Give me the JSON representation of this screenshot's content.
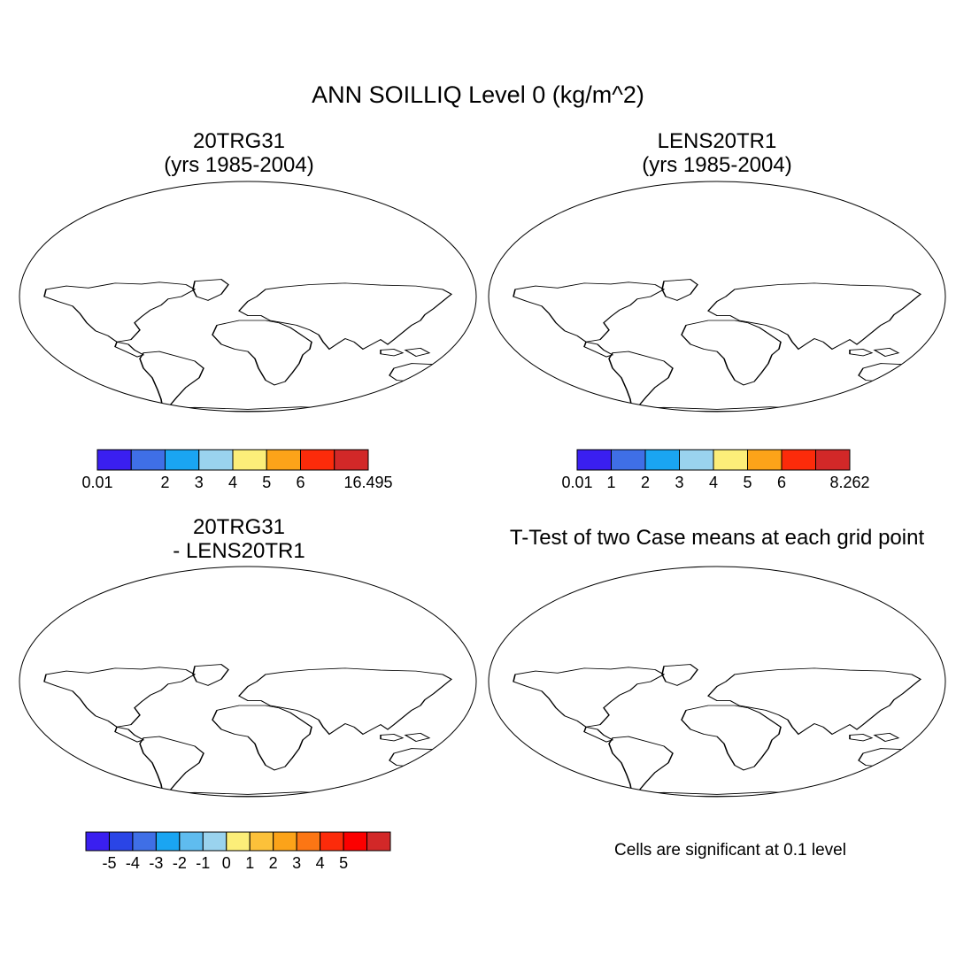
{
  "title": "ANN SOILLIQ Level 0 (kg/m^2)",
  "panels": [
    {
      "id": "p1",
      "title_line1": "20TRG31",
      "title_line2": "(yrs 1985-2004)"
    },
    {
      "id": "p2",
      "title_line1": "LENS20TR1",
      "title_line2": "(yrs 1985-2004)"
    },
    {
      "id": "p3",
      "title_line1": "20TRG31",
      "title_line2": "- LENS20TR1"
    },
    {
      "id": "p4",
      "title_line1": "T-Test of two Case means at each grid point",
      "title_line2": ""
    }
  ],
  "colorbars": [
    {
      "id": "cb1",
      "colors": [
        "#3a1ff0",
        "#3f6fe6",
        "#1aa5f2",
        "#9ad3ee",
        "#fcee79",
        "#fca319",
        "#fc2b0a",
        "#d22828"
      ],
      "labels": [
        {
          "text": "0.01",
          "boundary": 0
        },
        {
          "text": "2",
          "boundary": 2
        },
        {
          "text": "3",
          "boundary": 3
        },
        {
          "text": "4",
          "boundary": 4
        },
        {
          "text": "5",
          "boundary": 5
        },
        {
          "text": "6",
          "boundary": 6
        },
        {
          "text": "16.495",
          "boundary": 8
        }
      ]
    },
    {
      "id": "cb2",
      "colors": [
        "#3a1ff0",
        "#3f6fe6",
        "#1aa5f2",
        "#9ad3ee",
        "#fcee79",
        "#fca319",
        "#fc2b0a",
        "#d22828"
      ],
      "labels": [
        {
          "text": "0.01",
          "boundary": 0
        },
        {
          "text": "1",
          "boundary": 1
        },
        {
          "text": "2",
          "boundary": 2
        },
        {
          "text": "3",
          "boundary": 3
        },
        {
          "text": "4",
          "boundary": 4
        },
        {
          "text": "5",
          "boundary": 5
        },
        {
          "text": "6",
          "boundary": 6
        },
        {
          "text": "8.262",
          "boundary": 8
        }
      ]
    },
    {
      "id": "cb3",
      "colors": [
        "#3a1ff0",
        "#2a45e6",
        "#3f6fe6",
        "#1aa5f2",
        "#5fbcef",
        "#9ad3ee",
        "#fcee79",
        "#fcc13a",
        "#fca319",
        "#fc7614",
        "#fc2b0a",
        "#fc0000",
        "#d22828"
      ],
      "labels": [
        {
          "text": "-5",
          "boundary": 1
        },
        {
          "text": "-4",
          "boundary": 2
        },
        {
          "text": "-3",
          "boundary": 3
        },
        {
          "text": "-2",
          "boundary": 4
        },
        {
          "text": "-1",
          "boundary": 5
        },
        {
          "text": "0",
          "boundary": 6
        },
        {
          "text": "1",
          "boundary": 7
        },
        {
          "text": "2",
          "boundary": 8
        },
        {
          "text": "3",
          "boundary": 9
        },
        {
          "text": "4",
          "boundary": 10
        },
        {
          "text": "5",
          "boundary": 11
        }
      ]
    }
  ],
  "significance_note": "Cells are significant at 0.1 level",
  "map_colors": {
    "panel1": [
      "#3f6fe6",
      "#1aa5f2",
      "#9ad3ee",
      "#fcee79",
      "#fca319",
      "#fc2b0a",
      "#d22828",
      "#3a1ff0"
    ],
    "panel2": [
      "#3a1ff0",
      "#3f6fe6",
      "#1aa5f2",
      "#9ad3ee",
      "#fcee79",
      "#fca319",
      "#fc2b0a"
    ],
    "panel3": [
      "#fcee79",
      "#fcc13a",
      "#fca319",
      "#fc7614",
      "#9ad3ee"
    ],
    "panel4": [
      "#fc0000",
      "#ffffff"
    ]
  }
}
